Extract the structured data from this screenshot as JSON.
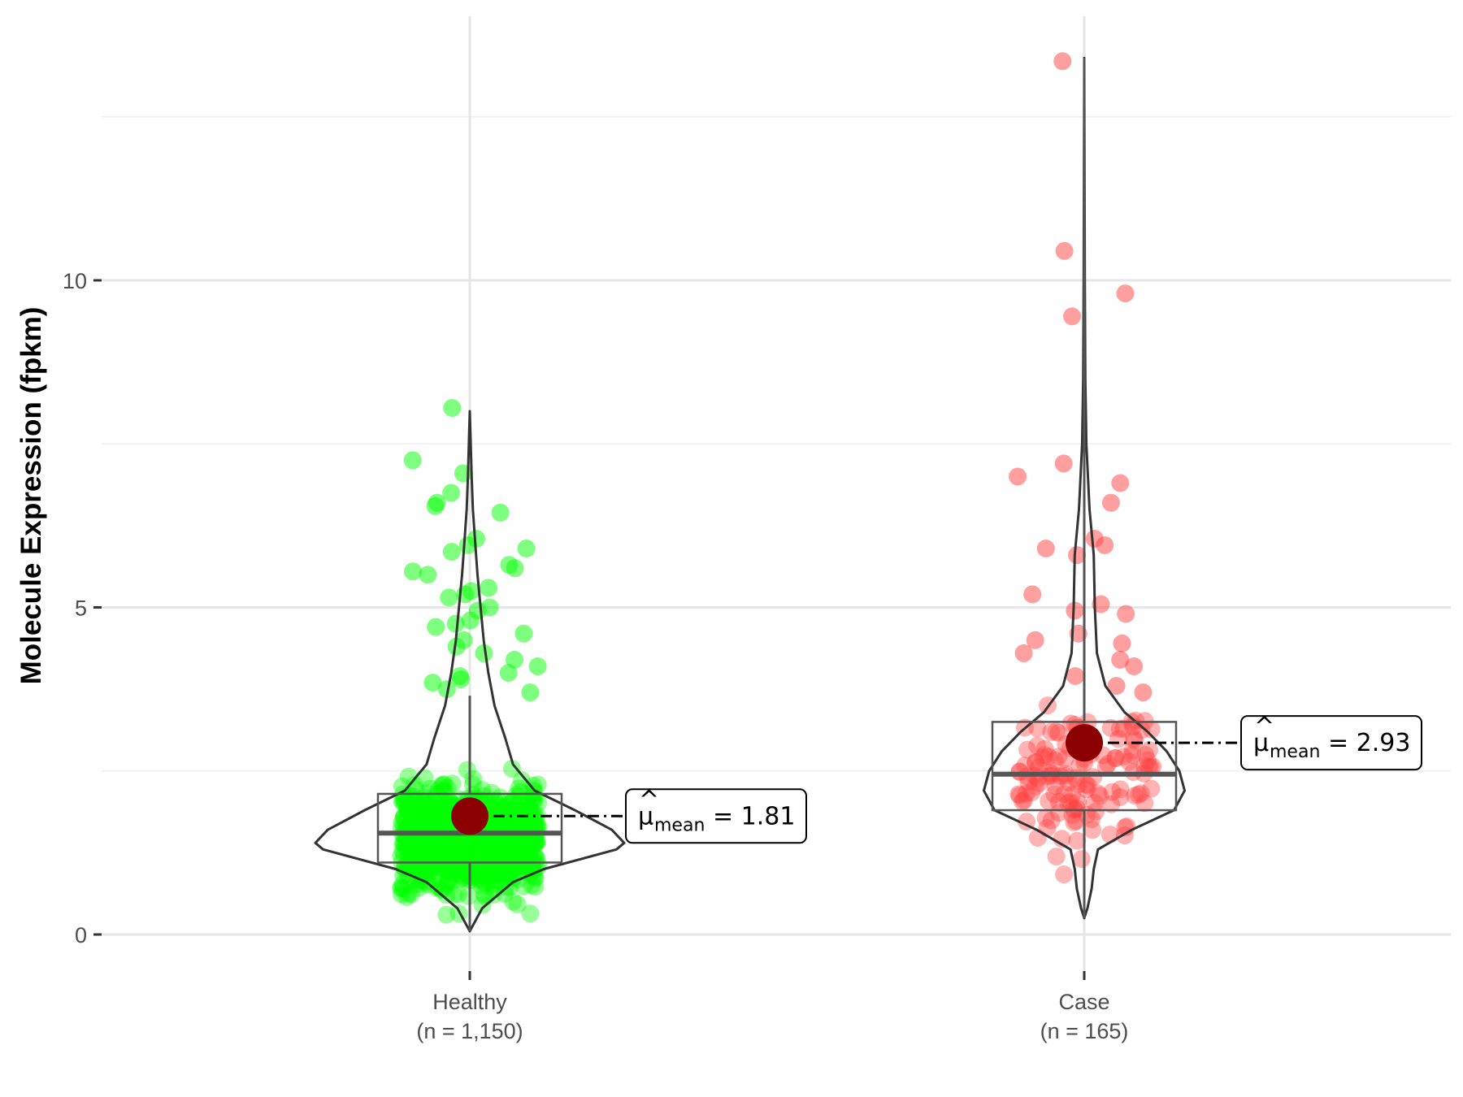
{
  "chart_data": {
    "type": "violin",
    "title": "",
    "xlabel": "",
    "ylabel": "Molecule Expression (fpkm)",
    "ylim": [
      -0.7,
      14
    ],
    "y_ticks": [
      0,
      5,
      10
    ],
    "y_tick_labels": [
      "0",
      "5",
      "10"
    ],
    "grid": true,
    "legend": "none",
    "categories": [
      "Healthy",
      "Case"
    ],
    "category_labels": [
      [
        "Healthy",
        "(n = 1,150)"
      ],
      [
        "Case",
        "(n = 165)"
      ]
    ],
    "series": [
      {
        "name": "Healthy",
        "n": 1150,
        "color": "#00ff00",
        "mean": 1.81,
        "mean_label": "1.81",
        "box": {
          "min": 0.05,
          "q1": 1.1,
          "median": 1.55,
          "q3": 2.15,
          "max": 3.65
        },
        "violin": [
          [
            0.05,
            0.0
          ],
          [
            0.4,
            0.08
          ],
          [
            0.8,
            0.28
          ],
          [
            1.0,
            0.48
          ],
          [
            1.3,
            0.95
          ],
          [
            1.4,
            1.0
          ],
          [
            1.6,
            0.92
          ],
          [
            1.9,
            0.68
          ],
          [
            2.2,
            0.42
          ],
          [
            2.6,
            0.28
          ],
          [
            3.0,
            0.23
          ],
          [
            3.5,
            0.16
          ],
          [
            4.0,
            0.12
          ],
          [
            4.5,
            0.09
          ],
          [
            5.0,
            0.07
          ],
          [
            5.5,
            0.05
          ],
          [
            6.0,
            0.035
          ],
          [
            6.5,
            0.02
          ],
          [
            7.0,
            0.012
          ],
          [
            8.0,
            0.0
          ]
        ],
        "outliers": [
          8.05,
          7.25,
          7.05,
          6.75,
          6.6,
          6.55,
          6.45,
          6.05,
          5.95,
          5.9,
          5.85,
          5.65,
          5.6,
          5.55,
          5.5,
          5.3,
          5.25,
          5.2,
          5.15,
          5.0,
          4.95,
          4.8,
          4.75,
          4.7,
          4.6,
          4.5,
          4.4,
          4.3,
          4.2,
          4.1,
          4.0,
          3.95,
          3.9,
          3.85,
          3.75,
          3.7
        ]
      },
      {
        "name": "Case",
        "n": 165,
        "color": "#ff4040",
        "mean": 2.93,
        "mean_label": "2.93",
        "box": {
          "min": 0.25,
          "q1": 1.9,
          "median": 2.45,
          "q3": 3.25,
          "max": 13.4
        },
        "violin": [
          [
            0.25,
            0.0
          ],
          [
            0.4,
            0.03
          ],
          [
            0.7,
            0.07
          ],
          [
            1.0,
            0.09
          ],
          [
            1.3,
            0.13
          ],
          [
            1.6,
            0.45
          ],
          [
            1.9,
            0.85
          ],
          [
            2.2,
            0.95
          ],
          [
            2.5,
            0.9
          ],
          [
            2.8,
            0.78
          ],
          [
            3.1,
            0.6
          ],
          [
            3.4,
            0.38
          ],
          [
            3.8,
            0.2
          ],
          [
            4.3,
            0.12
          ],
          [
            5.0,
            0.1
          ],
          [
            5.8,
            0.09
          ],
          [
            6.5,
            0.05
          ],
          [
            7.5,
            0.02
          ],
          [
            8.5,
            0.01
          ],
          [
            10.0,
            0.005
          ],
          [
            13.4,
            0.0
          ]
        ],
        "outliers": [
          13.35,
          10.45,
          9.8,
          9.45,
          7.2,
          7.0,
          6.9,
          6.6,
          6.05,
          5.95,
          5.9,
          5.8,
          5.2,
          5.05,
          4.95,
          4.9,
          4.6,
          4.5,
          4.45,
          4.3,
          4.2,
          4.1,
          3.95,
          3.8,
          3.7
        ]
      }
    ]
  }
}
